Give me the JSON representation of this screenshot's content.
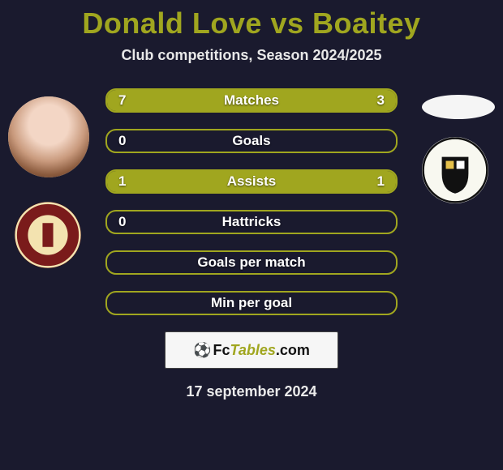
{
  "title": {
    "player1": "Donald Love",
    "vs": "vs",
    "player2": "Boaitey"
  },
  "subtitle": "Club competitions, Season 2024/2025",
  "colors": {
    "background": "#1a1a2e",
    "accent": "#a0a61f",
    "text_light": "#e8e8e8"
  },
  "players": {
    "left": {
      "name": "Donald Love",
      "club": "Accrington Stanley"
    },
    "right": {
      "name": "Boaitey",
      "club": "Port Vale"
    }
  },
  "rows": [
    {
      "metric": "Matches",
      "left_val": "7",
      "right_val": "3",
      "left_fill_pct": 70,
      "right_fill_pct": 30
    },
    {
      "metric": "Goals",
      "left_val": "0",
      "right_val": "",
      "left_fill_pct": 0,
      "right_fill_pct": 0
    },
    {
      "metric": "Assists",
      "left_val": "1",
      "right_val": "1",
      "left_fill_pct": 50,
      "right_fill_pct": 50
    },
    {
      "metric": "Hattricks",
      "left_val": "0",
      "right_val": "",
      "left_fill_pct": 0,
      "right_fill_pct": 0
    },
    {
      "metric": "Goals per match",
      "left_val": "",
      "right_val": "",
      "left_fill_pct": 0,
      "right_fill_pct": 0
    },
    {
      "metric": "Min per goal",
      "left_val": "",
      "right_val": "",
      "left_fill_pct": 0,
      "right_fill_pct": 0
    }
  ],
  "brand": {
    "pre": "Fc",
    "tables": "Tables",
    "suffix": ".com"
  },
  "date": "17 september 2024"
}
